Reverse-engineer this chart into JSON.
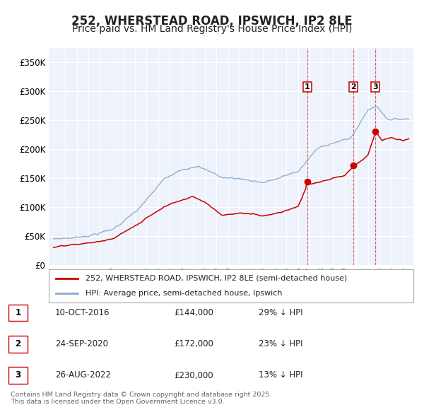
{
  "title": "252, WHERSTEAD ROAD, IPSWICH, IP2 8LE",
  "subtitle": "Price paid vs. HM Land Registry's House Price Index (HPI)",
  "legend_label_red": "252, WHERSTEAD ROAD, IPSWICH, IP2 8LE (semi-detached house)",
  "legend_label_blue": "HPI: Average price, semi-detached house, Ipswich",
  "ylim": [
    0,
    375000
  ],
  "yticks": [
    0,
    50000,
    100000,
    150000,
    200000,
    250000,
    300000,
    350000
  ],
  "ytick_labels": [
    "£0",
    "£50K",
    "£100K",
    "£150K",
    "£200K",
    "£250K",
    "£300K",
    "£350K"
  ],
  "background_color": "#ffffff",
  "plot_bg_color": "#eef2fb",
  "grid_color": "#ffffff",
  "red_color": "#cc0000",
  "blue_color": "#88aacc",
  "sale_points": [
    {
      "date": 2016.78,
      "price": 144000,
      "label": "1"
    },
    {
      "date": 2020.73,
      "price": 172000,
      "label": "2"
    },
    {
      "date": 2022.65,
      "price": 230000,
      "label": "3"
    }
  ],
  "vline_dates": [
    2016.78,
    2020.73,
    2022.65
  ],
  "table_data": [
    [
      "1",
      "10-OCT-2016",
      "£144,000",
      "29% ↓ HPI"
    ],
    [
      "2",
      "24-SEP-2020",
      "£172,000",
      "23% ↓ HPI"
    ],
    [
      "3",
      "26-AUG-2022",
      "£230,000",
      "13% ↓ HPI"
    ]
  ],
  "footer": "Contains HM Land Registry data © Crown copyright and database right 2025.\nThis data is licensed under the Open Government Licence v3.0.",
  "title_fontsize": 12,
  "subtitle_fontsize": 10,
  "tick_fontsize": 8.5
}
